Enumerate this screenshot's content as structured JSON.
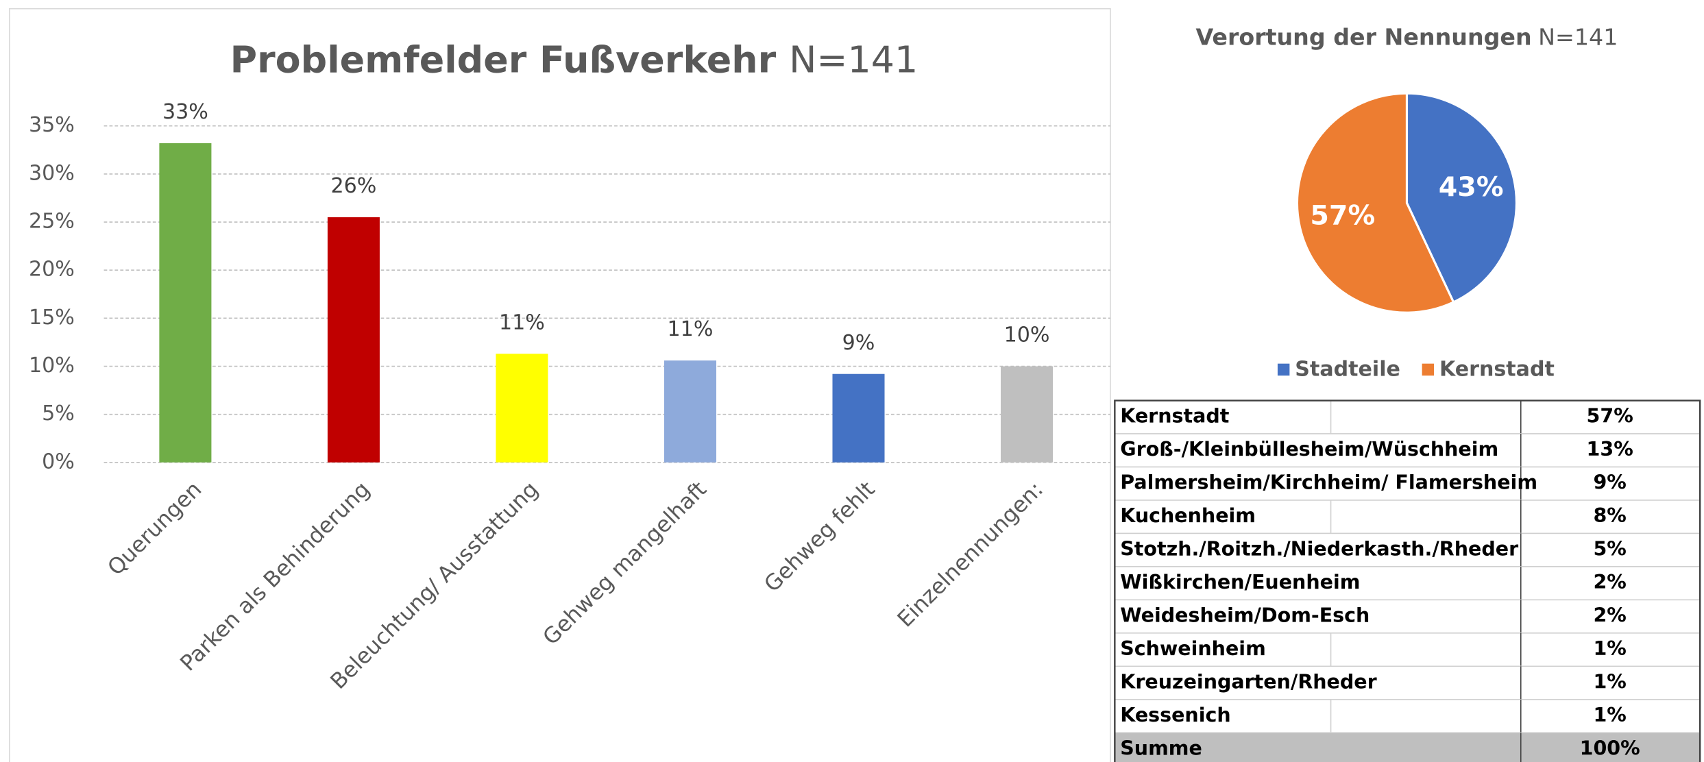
{
  "chart_data": [
    {
      "type": "bar",
      "title": "Problemfelder Fußverkehr",
      "subtitle": "N=141",
      "categories": [
        "Querungen",
        "Parken als Behinderung",
        "Beleuchtung/ Ausstattung",
        "Gehweg mangelhaft",
        "Gehweg fehlt",
        "Einzelnennungen:"
      ],
      "values": [
        33.2,
        25.5,
        11.3,
        10.6,
        9.2,
        10
      ],
      "value_labels": [
        "33%",
        "26%",
        "11%",
        "11%",
        "9%",
        "10%"
      ],
      "colors": [
        "#70ad47",
        "#c00000",
        "#ffff00",
        "#8eaadb",
        "#4472c4",
        "#bfbfbf"
      ],
      "ylim": [
        0,
        35
      ],
      "yticks": [
        {
          "value": 0,
          "label": "0%"
        },
        {
          "value": 5,
          "label": "5%"
        },
        {
          "value": 10,
          "label": "10%"
        },
        {
          "value": 15,
          "label": "15%"
        },
        {
          "value": 20,
          "label": "20%"
        },
        {
          "value": 25,
          "label": "25%"
        },
        {
          "value": 30,
          "label": "30%"
        },
        {
          "value": 35,
          "label": "35%"
        }
      ],
      "grid": true
    },
    {
      "type": "pie",
      "title": "Verortung der Nennungen",
      "subtitle": "N=141",
      "categories": [
        "Stadteile",
        "Kernstadt"
      ],
      "values": [
        43,
        57
      ],
      "value_labels": [
        "43%",
        "57%"
      ],
      "colors": [
        "#4472c4",
        "#ed7d31"
      ],
      "legend": "bottom"
    }
  ],
  "table": {
    "rows": [
      [
        "Kernstadt",
        "57%"
      ],
      [
        "Groß-/Kleinbüllesheim/Wüschheim",
        "13%"
      ],
      [
        "Palmersheim/Kirchheim/ Flamersheim",
        "9%"
      ],
      [
        "Kuchenheim",
        "8%"
      ],
      [
        "Stotzh./Roitzh./Niederkasth./Rheder",
        "5%"
      ],
      [
        "Wißkirchen/Euenheim",
        "2%"
      ],
      [
        "Weidesheim/Dom-Esch",
        "2%"
      ],
      [
        "Schweinheim",
        "1%"
      ],
      [
        "Kreuzeingarten/Rheder",
        "1%"
      ],
      [
        "Kessenich",
        "1%"
      ],
      [
        "Summe",
        "100%"
      ]
    ]
  }
}
